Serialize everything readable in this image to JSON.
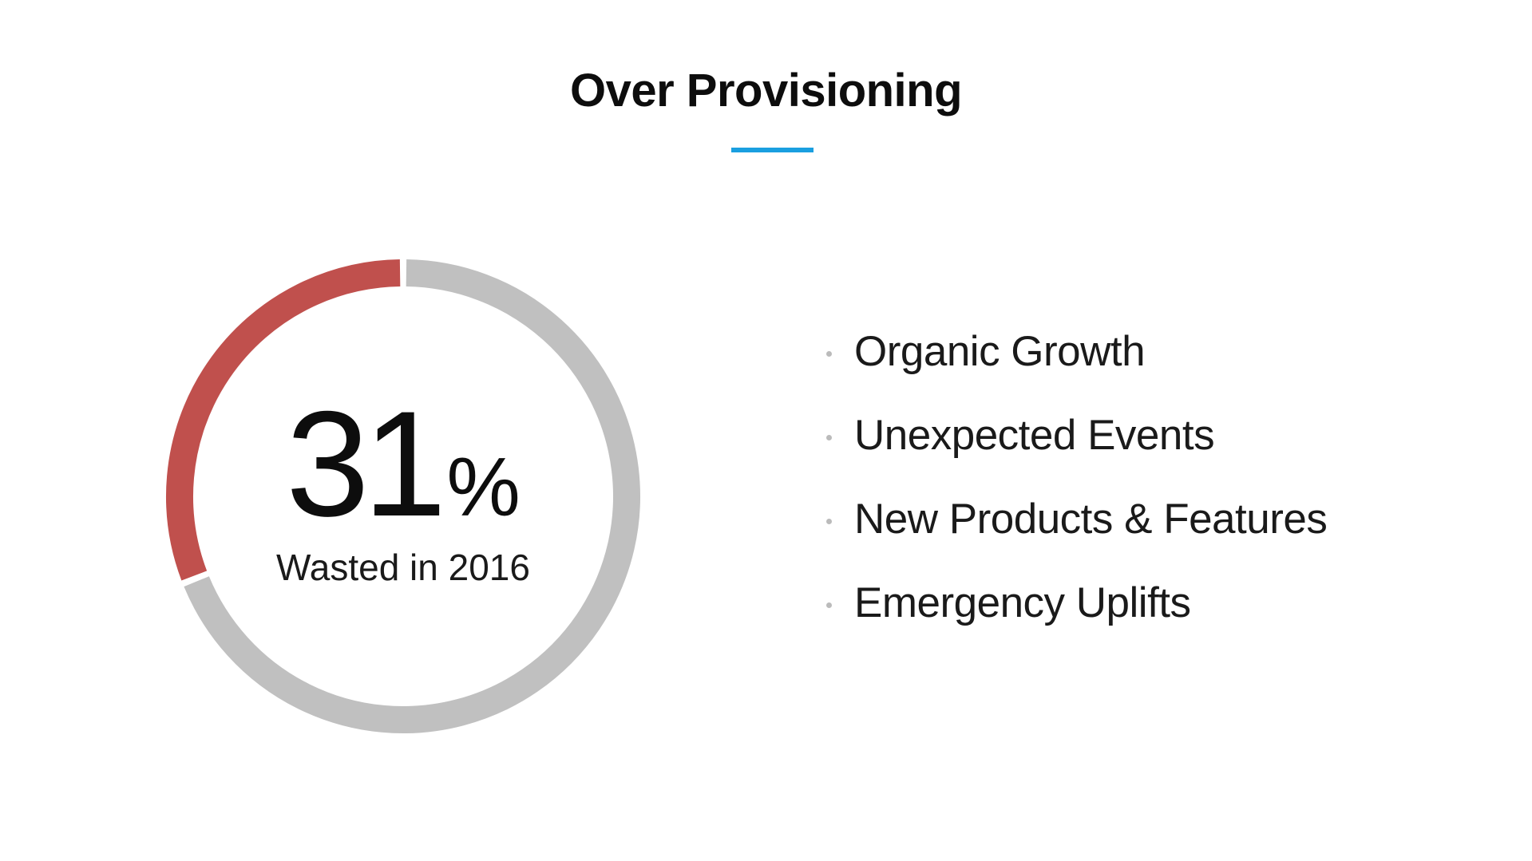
{
  "slide": {
    "title": "Over Provisioning",
    "accent_color": "#1a9fe0"
  },
  "donut": {
    "value": "31",
    "unit": "%",
    "caption": "Wasted in 2016",
    "fraction": 0.31,
    "highlight_color": "#c0504d",
    "track_color": "#c0c0c0"
  },
  "bullets": {
    "items": [
      "Organic Growth",
      "Unexpected Events",
      "New Products & Features",
      "Emergency Uplifts"
    ],
    "dot_color": "#bbbbbb"
  }
}
